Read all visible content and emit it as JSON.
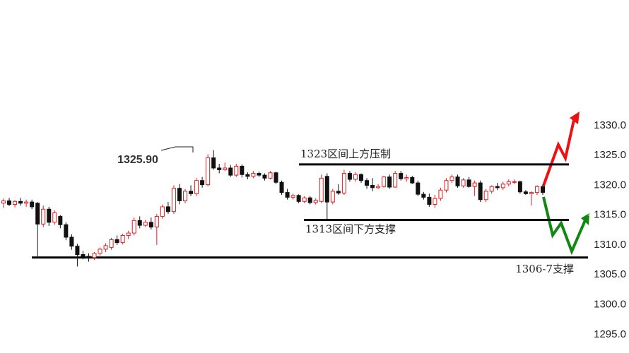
{
  "chart_data": {
    "type": "candlestick",
    "up_color": "#e02020",
    "down_color": "#111111",
    "open": [
      1317.0,
      1317.4,
      1316.8,
      1317.3,
      1317.0,
      1317.2,
      1317.0,
      1313.5,
      1316.0,
      1313.8,
      1314.8,
      1313.4,
      1311.3,
      1309.8,
      1308.4,
      1308.1,
      1307.9,
      1308.6,
      1309.3,
      1309.6,
      1310.9,
      1310.4,
      1311.6,
      1312.0,
      1314.1,
      1313.3,
      1313.8,
      1313.0,
      1314.8,
      1316.4,
      1315.6,
      1319.5,
      1317.4,
      1319.0,
      1318.6,
      1320.8,
      1320.1,
      1324.6,
      1322.9,
      1322.6,
      1322.9,
      1321.7,
      1323.2,
      1321.8,
      1321.5,
      1322.0,
      1321.7,
      1321.2,
      1322.1,
      1320.5,
      1318.8,
      1318.0,
      1318.3,
      1317.3,
      1317.9,
      1317.1,
      1317.3,
      1321.5,
      1317.2,
      1319.0,
      1318.7,
      1322.0,
      1321.0,
      1321.8,
      1320.8,
      1320.0,
      1319.6,
      1319.8,
      1321.4,
      1319.7,
      1322.0,
      1321.1,
      1321.3,
      1320.4,
      1318.5,
      1318.0,
      1316.8,
      1317.8,
      1319.2,
      1320.8,
      1321.4,
      1319.9,
      1320.9,
      1319.8,
      1320.4,
      1317.6,
      1319.0,
      1319.8,
      1319.6,
      1320.2,
      1320.6,
      1320.6,
      1318.9,
      1318.6,
      1318.8,
      1319.8
    ],
    "high": [
      1317.8,
      1317.9,
      1317.5,
      1317.9,
      1317.6,
      1317.6,
      1317.2,
      1316.6,
      1316.4,
      1315.8,
      1315.0,
      1313.8,
      1311.8,
      1310.2,
      1309.0,
      1308.6,
      1308.8,
      1309.6,
      1310.3,
      1311.2,
      1311.6,
      1311.9,
      1312.4,
      1314.6,
      1314.8,
      1314.2,
      1314.6,
      1315.2,
      1316.8,
      1317.2,
      1320.0,
      1320.2,
      1319.4,
      1320.0,
      1321.2,
      1321.4,
      1325.2,
      1325.9,
      1323.6,
      1323.8,
      1323.4,
      1323.6,
      1323.5,
      1322.2,
      1322.4,
      1322.3,
      1322.0,
      1322.4,
      1322.3,
      1320.8,
      1319.4,
      1318.6,
      1318.5,
      1318.2,
      1318.2,
      1317.8,
      1321.8,
      1322.0,
      1319.4,
      1320.2,
      1322.6,
      1322.4,
      1322.2,
      1322.0,
      1321.2,
      1321.2,
      1320.2,
      1321.6,
      1321.8,
      1322.4,
      1322.4,
      1321.8,
      1321.6,
      1320.8,
      1318.9,
      1318.6,
      1318.4,
      1319.6,
      1321.2,
      1321.8,
      1321.8,
      1321.2,
      1321.4,
      1320.8,
      1320.8,
      1319.4,
      1320.0,
      1320.4,
      1320.6,
      1321.0,
      1321.0,
      1320.8,
      1319.2,
      1319.0,
      1320.0,
      1320.2
    ],
    "low": [
      1316.2,
      1316.5,
      1316.3,
      1316.6,
      1316.4,
      1316.0,
      1307.9,
      1313.0,
      1313.2,
      1313.4,
      1312.8,
      1310.8,
      1309.2,
      1306.4,
      1307.6,
      1307.2,
      1307.5,
      1308.2,
      1308.8,
      1309.2,
      1310.0,
      1310.1,
      1311.0,
      1311.6,
      1312.8,
      1313.0,
      1312.6,
      1310.0,
      1314.4,
      1315.2,
      1315.2,
      1316.8,
      1317.0,
      1318.2,
      1318.2,
      1319.6,
      1319.8,
      1322.6,
      1322.0,
      1322.4,
      1321.4,
      1321.4,
      1321.3,
      1321.0,
      1321.2,
      1321.4,
      1320.8,
      1321.0,
      1320.2,
      1318.4,
      1317.6,
      1317.6,
      1317.0,
      1317.0,
      1316.8,
      1316.8,
      1317.0,
      1314.2,
      1316.8,
      1318.4,
      1318.4,
      1320.6,
      1320.6,
      1320.4,
      1319.4,
      1319.0,
      1319.4,
      1319.6,
      1319.4,
      1319.6,
      1320.8,
      1320.6,
      1320.2,
      1318.2,
      1317.6,
      1316.4,
      1316.2,
      1317.4,
      1318.8,
      1320.4,
      1319.6,
      1319.6,
      1319.6,
      1318.2,
      1317.2,
      1317.2,
      1318.6,
      1319.2,
      1319.2,
      1319.8,
      1320.2,
      1318.6,
      1318.4,
      1316.6,
      1318.4,
      1318.4
    ],
    "close": [
      1317.4,
      1316.8,
      1317.3,
      1317.0,
      1317.2,
      1316.4,
      1313.5,
      1316.0,
      1313.8,
      1315.4,
      1313.4,
      1311.3,
      1309.8,
      1308.4,
      1308.1,
      1307.9,
      1308.6,
      1309.3,
      1309.9,
      1310.9,
      1310.4,
      1311.6,
      1312.0,
      1314.1,
      1313.3,
      1313.8,
      1313.0,
      1314.8,
      1316.4,
      1315.6,
      1319.5,
      1317.4,
      1319.0,
      1318.6,
      1320.8,
      1320.1,
      1324.6,
      1322.9,
      1322.6,
      1322.9,
      1321.7,
      1323.2,
      1321.8,
      1321.5,
      1322.0,
      1321.7,
      1321.2,
      1322.1,
      1320.5,
      1318.8,
      1318.0,
      1318.3,
      1317.3,
      1317.9,
      1317.1,
      1317.5,
      1321.2,
      1317.2,
      1319.0,
      1318.7,
      1322.0,
      1321.0,
      1321.8,
      1320.8,
      1320.0,
      1319.6,
      1319.8,
      1321.4,
      1319.7,
      1322.0,
      1321.1,
      1321.3,
      1320.4,
      1318.5,
      1318.0,
      1316.8,
      1317.8,
      1319.2,
      1320.8,
      1321.4,
      1319.9,
      1320.9,
      1319.8,
      1320.4,
      1317.6,
      1319.0,
      1319.8,
      1319.6,
      1320.2,
      1320.6,
      1320.6,
      1318.9,
      1318.6,
      1318.8,
      1319.8,
      1318.8
    ],
    "ylim": [
      1291.9,
      1351.05
    ],
    "yticks": [
      {
        "value": 1330,
        "label": "1330.0"
      },
      {
        "value": 1325,
        "label": "1325.0"
      },
      {
        "value": 1320,
        "label": "1320.0"
      },
      {
        "value": 1315,
        "label": "1315.0"
      },
      {
        "value": 1310,
        "label": "1310.0"
      },
      {
        "value": 1305,
        "label": "1305.0"
      },
      {
        "value": 1300,
        "label": "1300.0"
      },
      {
        "value": 1295,
        "label": "1295.0"
      }
    ],
    "peak_label": {
      "value": 1325.9,
      "label": "1325.90"
    },
    "levels": [
      {
        "value": 1323.5,
        "label": "1323区间上方压制"
      },
      {
        "value": 1314.2,
        "label": "1313区间下方支撑"
      },
      {
        "value": 1307.9,
        "label": "1306-7支撑"
      }
    ]
  }
}
